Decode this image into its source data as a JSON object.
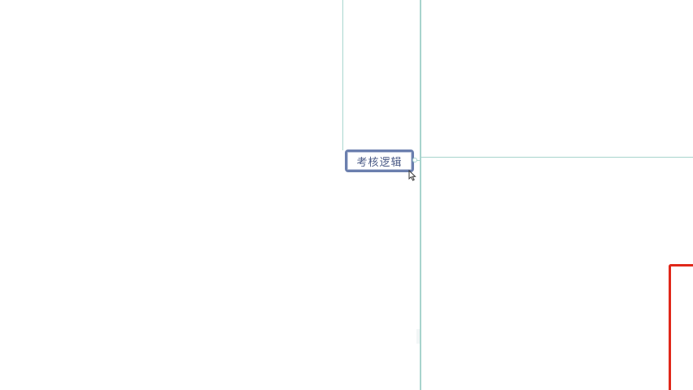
{
  "mindmap": {
    "topic_node": {
      "label": "考核逻辑"
    }
  },
  "colors": {
    "connector": "#a7d4cd",
    "node_border": "#6b7fae",
    "node_text": "#4a5a86",
    "highlight_frame": "#e0281a",
    "background": "#ffffff"
  },
  "icons": {
    "cursor": "mouse-pointer-icon",
    "toggle": "collapse-toggle-icon"
  }
}
